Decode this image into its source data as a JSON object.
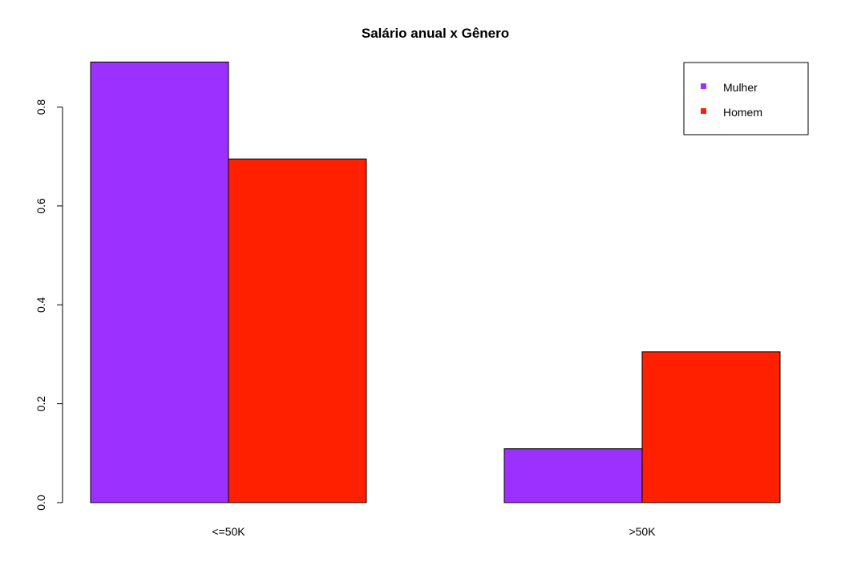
{
  "chart_data": {
    "type": "bar",
    "title": "Salário anual x Gênero",
    "categories": [
      "<=50K",
      ">50K"
    ],
    "series": [
      {
        "name": "Mulher",
        "color": "#9b30ff",
        "values": [
          0.891,
          0.109
        ]
      },
      {
        "name": "Homem",
        "color": "#ff2000",
        "values": [
          0.695,
          0.305
        ]
      }
    ],
    "ylim": [
      0,
      0.89
    ],
    "yticks": [
      "0.0",
      "0.2",
      "0.4",
      "0.6",
      "0.8"
    ],
    "ytick_values": [
      0,
      0.2,
      0.4,
      0.6,
      0.8
    ],
    "legend_position": "top-right",
    "grid": false
  }
}
